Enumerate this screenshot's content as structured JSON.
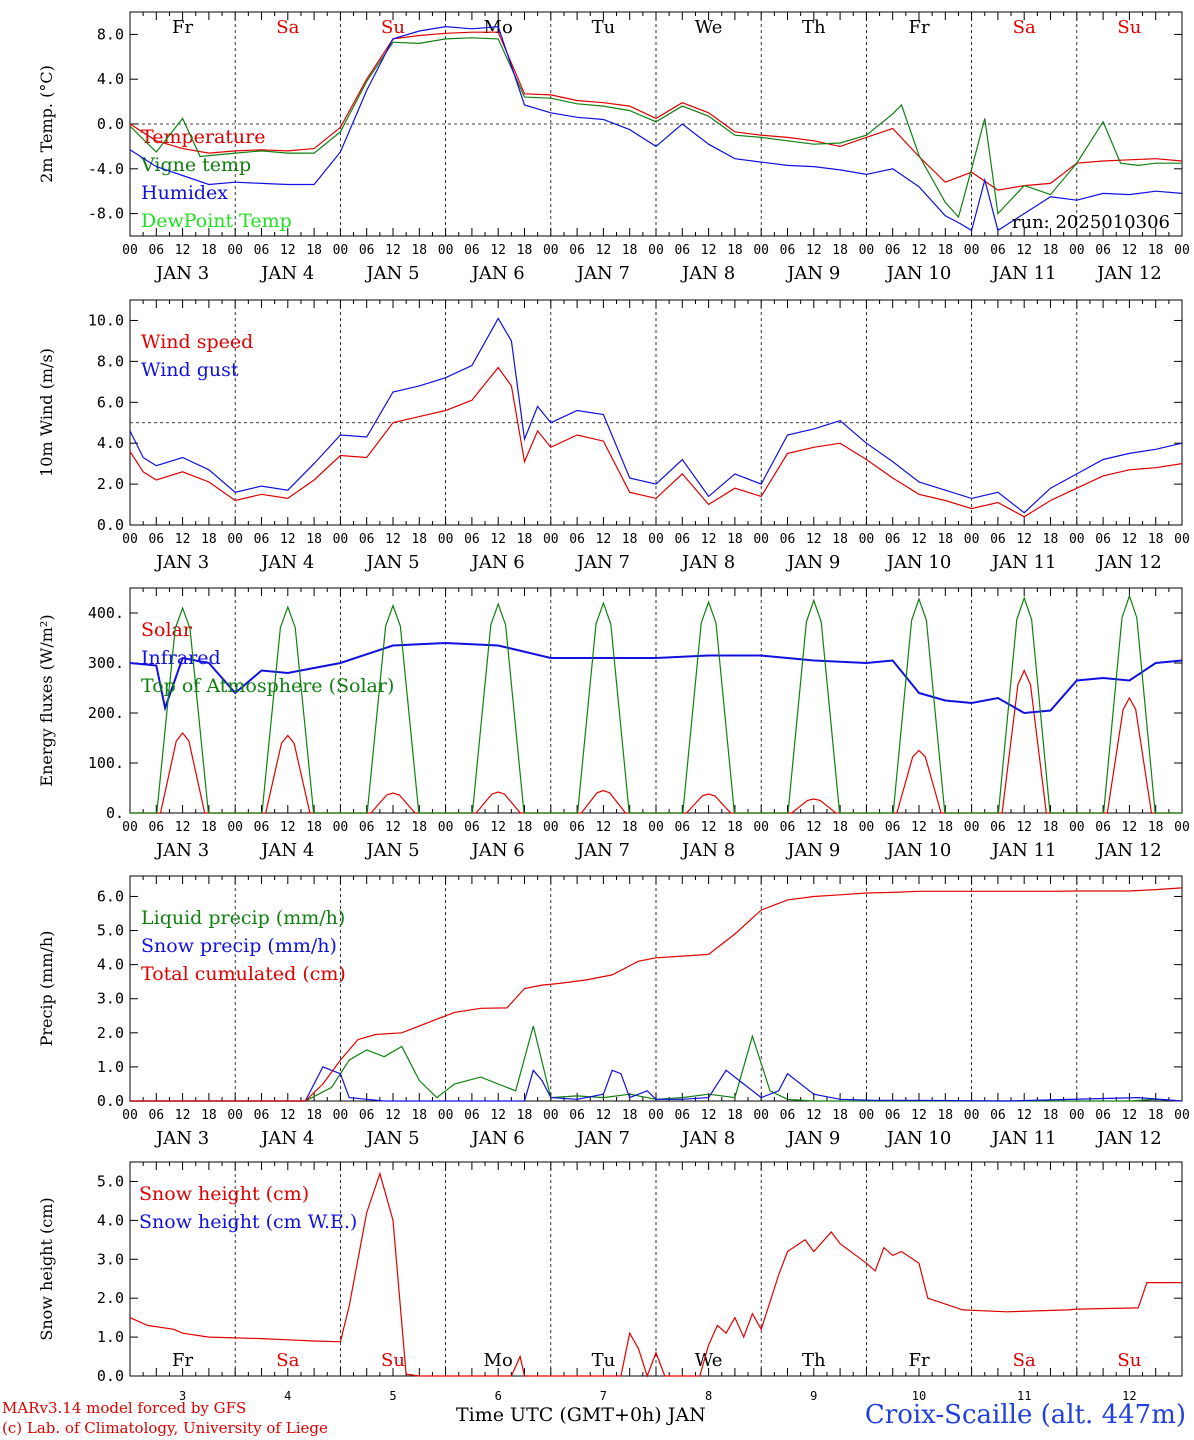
{
  "run_label": "run: 2025010306",
  "footer": {
    "model_line": "MARv3.14 model forced by GFS",
    "copyright_line": "(c) Lab. of Climatology, University of Liege",
    "xlabel": "Time UTC (GMT+0h) JAN",
    "station": "Croix-Scaille (alt. 447m)"
  },
  "days": {
    "weekdays": [
      "Fr",
      "Sa",
      "Su",
      "Mo",
      "Tu",
      "We",
      "Th",
      "Fr",
      "Sa",
      "Su"
    ],
    "weekend_flags": [
      false,
      true,
      true,
      false,
      false,
      false,
      false,
      false,
      true,
      true
    ],
    "dates": [
      "JAN  3",
      "JAN  4",
      "JAN  5",
      "JAN  6",
      "JAN  7",
      "JAN  8",
      "JAN  9",
      "JAN 10",
      "JAN 11",
      "JAN 12"
    ],
    "day_numbers": [
      "3",
      "4",
      "5",
      "6",
      "7",
      "8",
      "9",
      "10",
      "11",
      "12"
    ],
    "hour_ticks": [
      "00",
      "06",
      "12",
      "18"
    ],
    "hours_total": 240
  },
  "colors": {
    "red": "#e00000",
    "green": "#108010",
    "blue": "#1010e0",
    "lightgreen": "#20e020"
  },
  "chart_data": [
    {
      "type": "line",
      "ylabel": "2m Temp. (°C)",
      "ylim": [
        -10,
        10
      ],
      "yticks": [
        -8,
        -4,
        0,
        4,
        8
      ],
      "ytick_labels": [
        "-8.0",
        "-4.0",
        "0.0",
        "4.0",
        "8.0"
      ],
      "zero_line": true,
      "x_unit": "hours since JAN 3 00 UTC",
      "series": [
        {
          "name": "Temperature",
          "color": "red",
          "x": [
            0,
            6,
            12,
            18,
            24,
            30,
            36,
            42,
            48,
            54,
            60,
            66,
            72,
            78,
            84,
            90,
            96,
            102,
            108,
            114,
            120,
            126,
            132,
            138,
            144,
            150,
            156,
            162,
            168,
            174,
            180,
            186,
            192,
            198,
            204,
            210,
            216,
            222,
            228,
            234,
            240
          ],
          "y": [
            0,
            -1.5,
            -2.2,
            -2.6,
            -2.4,
            -2.3,
            -2.4,
            -2.2,
            -0.3,
            4,
            7.6,
            7.9,
            8.1,
            8.2,
            8.2,
            2.7,
            2.6,
            2.1,
            1.9,
            1.6,
            0.5,
            1.9,
            1,
            -0.7,
            -1,
            -1.2,
            -1.5,
            -2,
            -1.2,
            -0.4,
            -2.9,
            -5.2,
            -4.3,
            -5.9,
            -5.5,
            -5.3,
            -3.5,
            -3.3,
            -3.2,
            -3.1,
            -3.3
          ]
        },
        {
          "name": "Vigne temp",
          "color": "green",
          "x": [
            0,
            6,
            9,
            12,
            16,
            24,
            30,
            36,
            42,
            48,
            54,
            60,
            66,
            72,
            78,
            84,
            90,
            96,
            102,
            108,
            114,
            120,
            126,
            132,
            138,
            144,
            150,
            156,
            162,
            168,
            174,
            176,
            180,
            186,
            189,
            192,
            195,
            198,
            204,
            210,
            216,
            222,
            226,
            230,
            234,
            240
          ],
          "y": [
            -0.2,
            -2.5,
            -1,
            0.5,
            -2.9,
            -2.6,
            -2.4,
            -2.6,
            -2.6,
            -0.7,
            3.8,
            7.3,
            7.2,
            7.6,
            7.7,
            7.6,
            2.4,
            2.3,
            1.8,
            1.6,
            1.2,
            0.2,
            1.6,
            0.7,
            -1,
            -1.2,
            -1.5,
            -1.8,
            -1.7,
            -1,
            0.9,
            1.7,
            -2.8,
            -7,
            -8.3,
            -4,
            0.5,
            -8,
            -5.5,
            -6.3,
            -3.5,
            0.2,
            -3.5,
            -3.7,
            -3.5,
            -3.5
          ]
        },
        {
          "name": "Humidex",
          "color": "blue",
          "x": [
            0,
            6,
            12,
            18,
            24,
            30,
            36,
            42,
            48,
            54,
            60,
            66,
            72,
            78,
            84,
            90,
            96,
            102,
            108,
            114,
            120,
            126,
            132,
            138,
            144,
            150,
            156,
            162,
            168,
            174,
            180,
            186,
            189,
            192,
            195,
            198,
            204,
            210,
            216,
            222,
            228,
            234,
            240
          ],
          "y": [
            -2.3,
            -3.8,
            -4.6,
            -5.4,
            -5.2,
            -5.3,
            -5.4,
            -5.4,
            -2.5,
            3,
            7.6,
            8.3,
            8.7,
            8.5,
            8.7,
            1.7,
            1,
            0.6,
            0.4,
            -0.5,
            -2,
            0,
            -1.8,
            -3.1,
            -3.4,
            -3.7,
            -3.8,
            -4.1,
            -4.5,
            -4,
            -5.6,
            -8.2,
            -8.8,
            -9.5,
            -5,
            -9.5,
            -8,
            -6.5,
            -6.8,
            -6.2,
            -6.3,
            -6,
            -6.2
          ]
        },
        {
          "name": "DewPoint Temp",
          "color": "lightgreen",
          "x": [],
          "y": []
        }
      ]
    },
    {
      "type": "line",
      "ylabel": "10m Wind (m/s)",
      "ylim": [
        0,
        11
      ],
      "yticks": [
        0,
        2,
        4,
        6,
        8,
        10
      ],
      "ytick_labels": [
        "0.0",
        "2.0",
        "4.0",
        "6.0",
        "8.0",
        "10.0"
      ],
      "ref_line": 5,
      "series": [
        {
          "name": "Wind speed",
          "color": "red",
          "x": [
            0,
            3,
            6,
            12,
            18,
            24,
            30,
            36,
            42,
            48,
            54,
            60,
            66,
            72,
            78,
            84,
            87,
            90,
            93,
            96,
            102,
            108,
            114,
            120,
            126,
            132,
            138,
            144,
            150,
            156,
            162,
            168,
            174,
            180,
            186,
            192,
            198,
            204,
            210,
            216,
            222,
            228,
            234,
            240
          ],
          "y": [
            3.6,
            2.6,
            2.2,
            2.6,
            2.1,
            1.2,
            1.5,
            1.3,
            2.2,
            3.4,
            3.3,
            5.0,
            5.3,
            5.6,
            6.1,
            7.7,
            6.8,
            3.1,
            4.6,
            3.8,
            4.4,
            4.1,
            1.6,
            1.3,
            2.5,
            1.0,
            1.8,
            1.4,
            3.5,
            3.8,
            4.0,
            3.2,
            2.3,
            1.5,
            1.2,
            0.8,
            1.1,
            0.4,
            1.2,
            1.8,
            2.4,
            2.7,
            2.8,
            3.0
          ]
        },
        {
          "name": "Wind gust",
          "color": "blue",
          "x": [
            0,
            3,
            6,
            12,
            18,
            24,
            30,
            36,
            42,
            48,
            54,
            60,
            66,
            72,
            78,
            84,
            87,
            90,
            93,
            96,
            102,
            108,
            114,
            120,
            126,
            132,
            138,
            144,
            150,
            156,
            162,
            168,
            174,
            180,
            186,
            192,
            198,
            204,
            210,
            216,
            222,
            228,
            234,
            240
          ],
          "y": [
            4.6,
            3.3,
            2.9,
            3.3,
            2.7,
            1.6,
            1.9,
            1.7,
            3.0,
            4.4,
            4.3,
            6.5,
            6.8,
            7.2,
            7.8,
            10.1,
            9.0,
            4.2,
            5.8,
            5.0,
            5.6,
            5.4,
            2.3,
            2.0,
            3.2,
            1.4,
            2.5,
            2.0,
            4.4,
            4.7,
            5.1,
            4.0,
            3.1,
            2.1,
            1.7,
            1.3,
            1.6,
            0.6,
            1.8,
            2.5,
            3.2,
            3.5,
            3.7,
            4.0
          ]
        }
      ]
    },
    {
      "type": "line",
      "ylabel": "Energy fluxes (W/m²)",
      "ylim": [
        0,
        450
      ],
      "yticks": [
        0,
        100,
        200,
        300,
        400
      ],
      "ytick_labels": [
        "0.",
        "100.",
        "200.",
        "300.",
        "400."
      ],
      "series": [
        {
          "name": "Solar",
          "color": "red",
          "peaks": [
            160,
            155,
            40,
            42,
            45,
            38,
            28,
            125,
            285,
            230
          ]
        },
        {
          "name": "Infrared",
          "color": "blue",
          "x": [
            0,
            6,
            8,
            12,
            18,
            24,
            30,
            36,
            48,
            60,
            72,
            84,
            96,
            108,
            120,
            132,
            144,
            156,
            168,
            174,
            180,
            186,
            192,
            198,
            204,
            210,
            216,
            222,
            228,
            234,
            240
          ],
          "y": [
            300,
            295,
            210,
            310,
            300,
            240,
            285,
            280,
            300,
            335,
            340,
            335,
            310,
            310,
            310,
            315,
            315,
            305,
            300,
            305,
            240,
            225,
            220,
            230,
            200,
            205,
            265,
            270,
            265,
            300,
            305
          ]
        },
        {
          "name": "Top of Atmosphere (Solar)",
          "color": "green",
          "peaks": [
            410,
            412,
            415,
            418,
            420,
            422,
            425,
            428,
            430,
            434
          ]
        }
      ]
    },
    {
      "type": "line",
      "ylabel": "Precip (mm/h)",
      "ylim": [
        0,
        6.6
      ],
      "yticks": [
        0,
        1,
        2,
        3,
        4,
        5,
        6
      ],
      "ytick_labels": [
        "0.0",
        "1.0",
        "2.0",
        "3.0",
        "4.0",
        "5.0",
        "6.0"
      ],
      "series": [
        {
          "name": "Liquid precip (mm/h)",
          "color": "green",
          "x": [
            0,
            40,
            46,
            50,
            54,
            58,
            62,
            66,
            70,
            74,
            80,
            84,
            88,
            92,
            96,
            102,
            108,
            114,
            120,
            126,
            132,
            138,
            142,
            146,
            150,
            156,
            162,
            168,
            174,
            180,
            186,
            192,
            198,
            204,
            210,
            216,
            222,
            228,
            234,
            240
          ],
          "y": [
            0,
            0,
            0.4,
            1.2,
            1.5,
            1.3,
            1.6,
            0.6,
            0.1,
            0.5,
            0.7,
            0.5,
            0.3,
            2.2,
            0.1,
            0.15,
            0.1,
            0.2,
            0.05,
            0.1,
            0.2,
            0.1,
            1.9,
            0.3,
            0.05,
            0,
            0,
            0,
            0,
            0,
            0,
            0,
            0,
            0,
            0,
            0,
            0,
            0,
            0.05,
            0
          ]
        },
        {
          "name": "Snow precip (mm/h)",
          "color": "blue",
          "x": [
            0,
            40,
            44,
            48,
            50,
            54,
            58,
            90,
            92,
            94,
            96,
            102,
            108,
            110,
            112,
            114,
            118,
            120,
            126,
            132,
            136,
            140,
            144,
            148,
            150,
            156,
            162,
            170,
            180,
            200,
            230,
            240
          ],
          "y": [
            0,
            0,
            1.0,
            0.8,
            0.1,
            0.05,
            0,
            0,
            0.9,
            0.6,
            0.1,
            0.05,
            0.2,
            0.9,
            0.8,
            0.1,
            0.3,
            0.05,
            0.05,
            0.1,
            0.9,
            0.5,
            0.1,
            0.3,
            0.8,
            0.2,
            0.05,
            0.02,
            0.02,
            0,
            0.1,
            0
          ]
        },
        {
          "name": "Total cumulated (cm)",
          "color": "red",
          "x": [
            0,
            40,
            44,
            48,
            52,
            56,
            62,
            68,
            74,
            80,
            86,
            90,
            94,
            98,
            104,
            110,
            116,
            120,
            126,
            132,
            138,
            144,
            150,
            156,
            162,
            168,
            174,
            180,
            186,
            192,
            198,
            204,
            210,
            216,
            222,
            228,
            234,
            240
          ],
          "y": [
            0,
            0,
            0.5,
            1.2,
            1.8,
            1.95,
            2.0,
            2.3,
            2.6,
            2.72,
            2.73,
            3.3,
            3.4,
            3.45,
            3.55,
            3.7,
            4.1,
            4.2,
            4.25,
            4.3,
            4.9,
            5.6,
            5.9,
            6.0,
            6.05,
            6.1,
            6.12,
            6.15,
            6.15,
            6.15,
            6.15,
            6.15,
            6.15,
            6.16,
            6.16,
            6.16,
            6.2,
            6.25
          ]
        }
      ]
    },
    {
      "type": "line",
      "ylabel": "Snow height (cm)",
      "ylim": [
        0,
        5.5
      ],
      "yticks": [
        0,
        1,
        2,
        3,
        4,
        5
      ],
      "ytick_labels": [
        "0.0",
        "1.0",
        "2.0",
        "3.0",
        "4.0",
        "5.0"
      ],
      "series": [
        {
          "name": "Snow height (cm)",
          "color": "red",
          "x": [
            0,
            4,
            10,
            12,
            18,
            24,
            30,
            36,
            42,
            48,
            50,
            54,
            57,
            60,
            63,
            66,
            72,
            78,
            84,
            87,
            89,
            90,
            94,
            112,
            114,
            116,
            118,
            120,
            122,
            124,
            130,
            132,
            134,
            136,
            138,
            140,
            142,
            144,
            148,
            150,
            154,
            156,
            160,
            162,
            168,
            170,
            172,
            174,
            176,
            180,
            182,
            190,
            200,
            214,
            216,
            230,
            232,
            240
          ],
          "y": [
            1.5,
            1.3,
            1.2,
            1.1,
            1.0,
            0.98,
            0.96,
            0.93,
            0.9,
            0.88,
            1.8,
            4.2,
            5.2,
            4.0,
            0.05,
            0,
            0,
            0,
            0,
            0,
            0.5,
            0,
            0,
            0,
            1.1,
            0.7,
            0,
            0.6,
            0,
            0,
            0,
            0.8,
            1.3,
            1.1,
            1.5,
            1.0,
            1.6,
            1.2,
            2.6,
            3.2,
            3.5,
            3.2,
            3.7,
            3.4,
            2.9,
            2.7,
            3.3,
            3.1,
            3.2,
            2.9,
            2.0,
            1.7,
            1.65,
            1.7,
            1.72,
            1.75,
            2.4,
            2.4
          ]
        },
        {
          "name": "Snow height (cm W.E.)",
          "color": "blue",
          "x": [],
          "y": []
        }
      ]
    }
  ]
}
